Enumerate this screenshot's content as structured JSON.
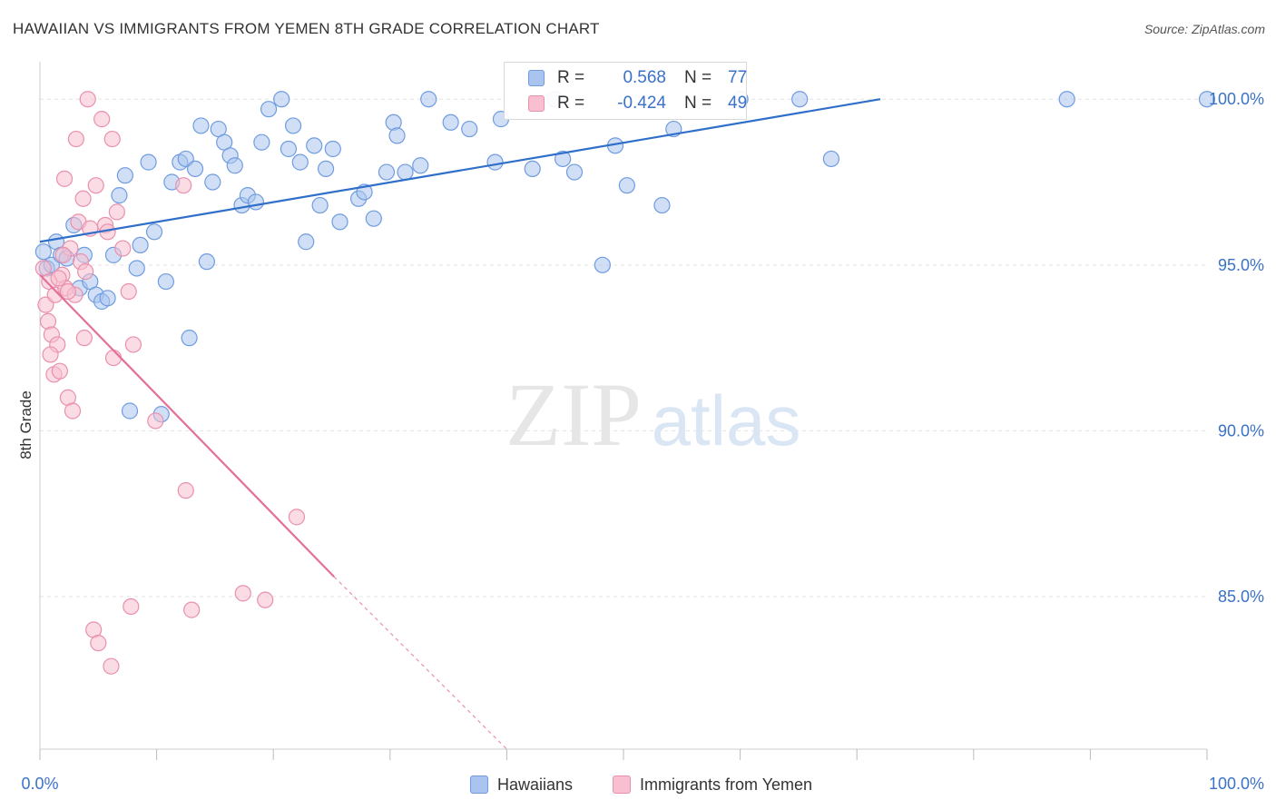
{
  "header": {
    "title": "HAWAIIAN VS IMMIGRANTS FROM YEMEN 8TH GRADE CORRELATION CHART",
    "source": "Source: ZipAtlas.com"
  },
  "watermark": {
    "zip": "ZIP",
    "atlas": "atlas"
  },
  "legend_top": [
    {
      "r_label": "R =",
      "r_value": "0.568",
      "n_label": "N =",
      "n_value": "77",
      "color": "#a9c4ef",
      "border": "#6f9ce0"
    },
    {
      "r_label": "R =",
      "r_value": "-0.424",
      "n_label": "N =",
      "n_value": "49",
      "color": "#f7bfd0",
      "border": "#e990ad"
    }
  ],
  "chart_data": {
    "type": "scatter",
    "title": "HAWAIIAN VS IMMIGRANTS FROM YEMEN 8TH GRADE CORRELATION CHART",
    "xlabel": "",
    "ylabel": "8th Grade",
    "xlim": [
      0,
      100
    ],
    "ylim": [
      80.4,
      100.8
    ],
    "x_tick_labels": [
      "0.0%",
      "100.0%"
    ],
    "y_ticks": [
      {
        "value": 85,
        "label": "85.0%"
      },
      {
        "value": 90,
        "label": "90.0%"
      },
      {
        "value": 95,
        "label": "95.0%"
      },
      {
        "value": 100,
        "label": "100.0%"
      }
    ],
    "grid": true,
    "legend_position": "bottom",
    "series": [
      {
        "name": "Hawaiians",
        "color": "#a9c4ef",
        "edge": "#6f9ce0",
        "line_color": "#2f6fc9",
        "trend": {
          "x0": 0,
          "y0": 95.7,
          "x1": 72,
          "y1": 100.0
        },
        "points": [
          [
            0.3,
            95.4
          ],
          [
            0.6,
            94.9
          ],
          [
            1.0,
            95.0
          ],
          [
            1.4,
            95.7
          ],
          [
            1.8,
            95.3
          ],
          [
            2.3,
            95.2
          ],
          [
            2.9,
            96.2
          ],
          [
            3.4,
            94.3
          ],
          [
            3.8,
            95.3
          ],
          [
            4.3,
            94.5
          ],
          [
            4.8,
            94.1
          ],
          [
            5.3,
            93.9
          ],
          [
            5.8,
            94.0
          ],
          [
            6.3,
            95.3
          ],
          [
            6.8,
            97.1
          ],
          [
            7.3,
            97.7
          ],
          [
            7.7,
            90.6
          ],
          [
            8.3,
            94.9
          ],
          [
            8.6,
            95.6
          ],
          [
            9.3,
            98.1
          ],
          [
            9.8,
            96.0
          ],
          [
            10.4,
            90.5
          ],
          [
            10.8,
            94.5
          ],
          [
            11.3,
            97.5
          ],
          [
            12.0,
            98.1
          ],
          [
            12.5,
            98.2
          ],
          [
            12.8,
            92.8
          ],
          [
            13.3,
            97.9
          ],
          [
            13.8,
            99.2
          ],
          [
            14.3,
            95.1
          ],
          [
            14.8,
            97.5
          ],
          [
            15.3,
            99.1
          ],
          [
            15.8,
            98.7
          ],
          [
            16.3,
            98.3
          ],
          [
            16.7,
            98.0
          ],
          [
            17.3,
            96.8
          ],
          [
            17.8,
            97.1
          ],
          [
            18.5,
            96.9
          ],
          [
            19.0,
            98.7
          ],
          [
            19.6,
            99.7
          ],
          [
            20.7,
            100.0
          ],
          [
            21.3,
            98.5
          ],
          [
            21.7,
            99.2
          ],
          [
            22.3,
            98.1
          ],
          [
            22.8,
            95.7
          ],
          [
            23.5,
            98.6
          ],
          [
            24.0,
            96.8
          ],
          [
            24.5,
            97.9
          ],
          [
            25.1,
            98.5
          ],
          [
            25.7,
            96.3
          ],
          [
            27.3,
            97.0
          ],
          [
            27.8,
            97.2
          ],
          [
            28.6,
            96.4
          ],
          [
            29.7,
            97.8
          ],
          [
            30.3,
            99.3
          ],
          [
            30.6,
            98.9
          ],
          [
            31.3,
            97.8
          ],
          [
            32.6,
            98.0
          ],
          [
            33.3,
            100.0
          ],
          [
            35.2,
            99.3
          ],
          [
            36.8,
            99.1
          ],
          [
            39.0,
            98.1
          ],
          [
            39.5,
            99.4
          ],
          [
            42.2,
            97.9
          ],
          [
            44.1,
            100.0
          ],
          [
            44.8,
            98.2
          ],
          [
            45.8,
            97.8
          ],
          [
            48.2,
            95.0
          ],
          [
            49.3,
            98.6
          ],
          [
            50.3,
            97.4
          ],
          [
            53.3,
            96.8
          ],
          [
            54.3,
            99.1
          ],
          [
            60.0,
            100.0
          ],
          [
            65.1,
            100.0
          ],
          [
            67.8,
            98.2
          ],
          [
            88.0,
            100.0
          ],
          [
            100.0,
            100.0
          ]
        ]
      },
      {
        "name": "Immigrants from Yemen",
        "color": "#f7bfd0",
        "edge": "#e990ad",
        "line_color": "#e37098",
        "trend": {
          "x0": 0,
          "y0": 94.7,
          "x1": 25.2,
          "y1": 85.6
        },
        "trend_dashed": {
          "x0": 25.2,
          "y0": 85.6,
          "x1": 40,
          "y1": 80.4
        },
        "points": [
          [
            0.3,
            94.9
          ],
          [
            0.5,
            93.8
          ],
          [
            0.7,
            93.3
          ],
          [
            0.8,
            94.5
          ],
          [
            1.0,
            92.9
          ],
          [
            1.2,
            91.7
          ],
          [
            1.3,
            94.1
          ],
          [
            1.5,
            92.6
          ],
          [
            1.7,
            91.8
          ],
          [
            1.9,
            94.7
          ],
          [
            2.1,
            97.6
          ],
          [
            2.2,
            94.3
          ],
          [
            2.4,
            91.0
          ],
          [
            2.6,
            95.5
          ],
          [
            2.8,
            90.6
          ],
          [
            3.0,
            94.1
          ],
          [
            3.1,
            98.8
          ],
          [
            3.3,
            96.3
          ],
          [
            3.5,
            95.1
          ],
          [
            3.7,
            97.0
          ],
          [
            3.8,
            92.8
          ],
          [
            3.9,
            94.8
          ],
          [
            4.1,
            100.0
          ],
          [
            4.3,
            96.1
          ],
          [
            4.6,
            84.0
          ],
          [
            4.8,
            97.4
          ],
          [
            5.0,
            83.6
          ],
          [
            5.3,
            99.4
          ],
          [
            5.6,
            96.2
          ],
          [
            5.8,
            96.0
          ],
          [
            6.1,
            82.9
          ],
          [
            6.2,
            98.8
          ],
          [
            6.3,
            92.2
          ],
          [
            6.6,
            96.6
          ],
          [
            7.1,
            95.5
          ],
          [
            7.6,
            94.2
          ],
          [
            7.8,
            84.7
          ],
          [
            8.0,
            92.6
          ],
          [
            9.9,
            90.3
          ],
          [
            12.3,
            97.4
          ],
          [
            12.5,
            88.2
          ],
          [
            13.0,
            84.6
          ],
          [
            17.4,
            85.1
          ],
          [
            19.3,
            84.9
          ],
          [
            22.0,
            87.4
          ],
          [
            1.6,
            94.6
          ],
          [
            2.4,
            94.2
          ],
          [
            2.0,
            95.3
          ],
          [
            0.9,
            92.3
          ]
        ]
      }
    ]
  }
}
